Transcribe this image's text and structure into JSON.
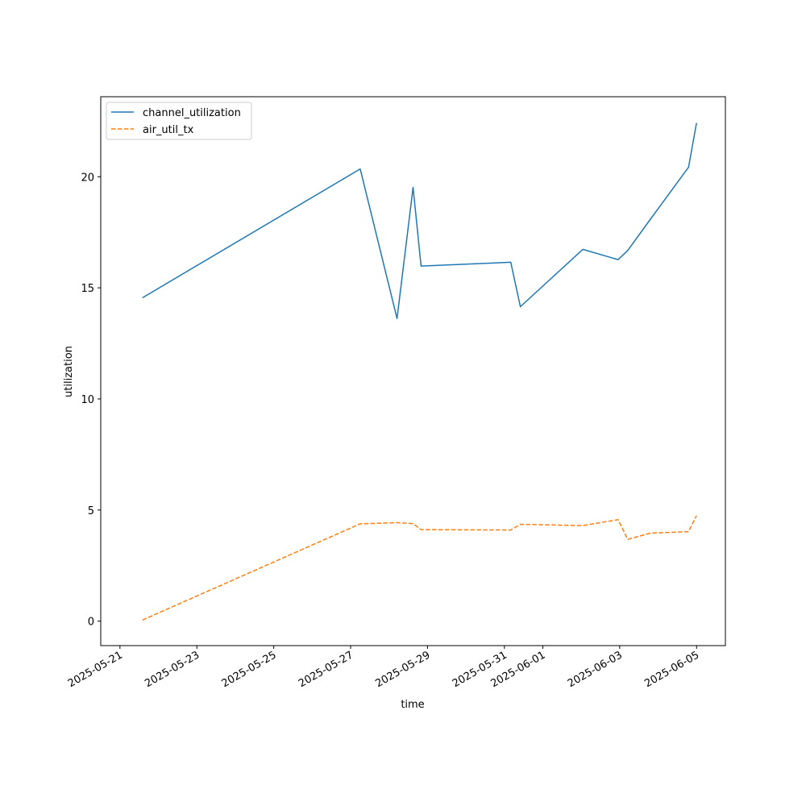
{
  "chart_data": {
    "type": "line",
    "title": "",
    "xlabel": "time",
    "ylabel": "utilization",
    "x_tick_labels": [
      "2025-05-21",
      "2025-05-23",
      "2025-05-25",
      "2025-05-27",
      "2025-05-29",
      "2025-05-31",
      "2025-06-01",
      "2025-06-03",
      "2025-06-05"
    ],
    "x_ticks": [
      "2025-05-21",
      "2025-05-23",
      "2025-05-25",
      "2025-05-27",
      "2025-05-29",
      "2025-05-31",
      "2025-06-01",
      "2025-06-03",
      "2025-06-05"
    ],
    "y_tick_labels": [
      "0",
      "5",
      "10",
      "15",
      "20"
    ],
    "y_ticks": [
      0,
      5,
      10,
      15,
      20
    ],
    "xlim": [
      "2025-05-20 12:00",
      "2025-06-05 18:00"
    ],
    "ylim": [
      -1.1,
      23.6
    ],
    "grid": false,
    "legend_position": "upper left",
    "series": [
      {
        "name": "channel_utilization",
        "color": "#1f77b4",
        "style": "solid",
        "points": [
          [
            "2025-05-21 14:00",
            14.55
          ],
          [
            "2025-05-27 06:00",
            20.35
          ],
          [
            "2025-05-28 05:00",
            13.62
          ],
          [
            "2025-05-28 15:00",
            19.52
          ],
          [
            "2025-05-28 20:00",
            15.98
          ],
          [
            "2025-05-31 04:00",
            16.15
          ],
          [
            "2025-05-31 10:00",
            14.15
          ],
          [
            "2025-06-02 01:00",
            16.73
          ],
          [
            "2025-06-02 23:00",
            16.27
          ],
          [
            "2025-06-03 05:00",
            16.68
          ],
          [
            "2025-06-03 19:00",
            18.07
          ],
          [
            "2025-06-04 19:00",
            20.43
          ],
          [
            "2025-06-05 00:00",
            22.42
          ]
        ]
      },
      {
        "name": "air_util_tx",
        "color": "#ff7f0e",
        "style": "dashed",
        "points": [
          [
            "2025-05-21 14:00",
            0.05
          ],
          [
            "2025-05-27 06:00",
            4.38
          ],
          [
            "2025-05-28 05:00",
            4.43
          ],
          [
            "2025-05-28 15:00",
            4.39
          ],
          [
            "2025-05-28 20:00",
            4.12
          ],
          [
            "2025-05-31 04:00",
            4.1
          ],
          [
            "2025-05-31 10:00",
            4.36
          ],
          [
            "2025-06-02 01:00",
            4.3
          ],
          [
            "2025-06-02 23:00",
            4.57
          ],
          [
            "2025-06-03 05:00",
            3.68
          ],
          [
            "2025-06-03 19:00",
            3.96
          ],
          [
            "2025-06-04 19:00",
            4.03
          ],
          [
            "2025-06-05 00:00",
            4.75
          ]
        ]
      }
    ]
  }
}
